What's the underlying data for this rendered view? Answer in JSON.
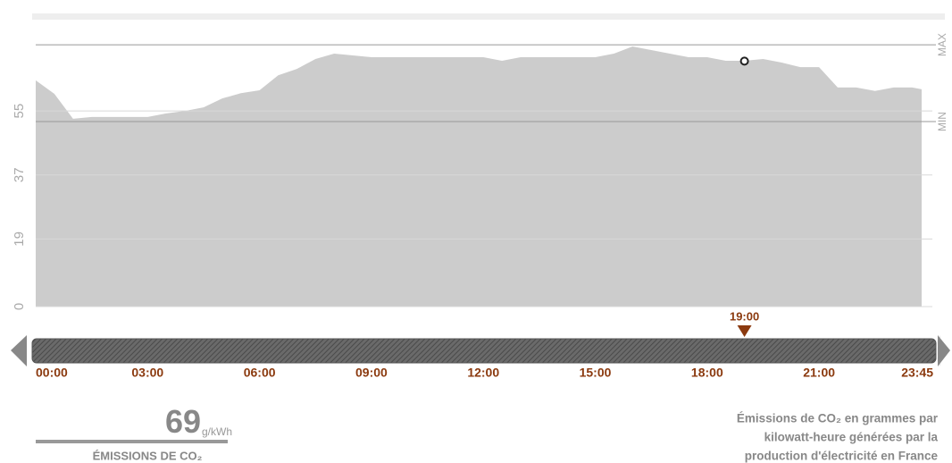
{
  "chart_data": {
    "type": "area",
    "x": [
      0,
      0.5,
      1,
      1.5,
      2,
      3,
      3.5,
      4,
      4.5,
      5,
      5.5,
      6,
      6.5,
      7,
      7.5,
      8,
      8.5,
      9,
      12,
      12.5,
      13,
      15,
      15.5,
      16,
      16.5,
      17,
      17.5,
      18,
      18.5,
      19,
      19.5,
      20,
      20.5,
      21,
      21.5,
      22,
      22.5,
      23,
      23.5,
      23.75
    ],
    "values": [
      63.6,
      59.8,
      52.8,
      53.3,
      53.3,
      53.3,
      54.3,
      55,
      56,
      58.5,
      60,
      60.8,
      65,
      66.8,
      69.6,
      71.1,
      70.6,
      70.1,
      70.1,
      69.1,
      70.1,
      70.1,
      71.1,
      73.1,
      72.1,
      71.1,
      70.1,
      70.1,
      69.1,
      69.1,
      69.6,
      68.6,
      67.3,
      67.3,
      61.6,
      61.6,
      60.6,
      61.6,
      61.6,
      61.1
    ],
    "color": "#cccccc",
    "xlim": [
      0,
      23.75
    ],
    "xticks": [
      {
        "value": 0,
        "label": "00:00"
      },
      {
        "value": 3,
        "label": "03:00"
      },
      {
        "value": 6,
        "label": "06:00"
      },
      {
        "value": 9,
        "label": "09:00"
      },
      {
        "value": 12,
        "label": "12:00"
      },
      {
        "value": 15,
        "label": "15:00"
      },
      {
        "value": 18,
        "label": "18:00"
      },
      {
        "value": 21,
        "label": "21:00"
      },
      {
        "value": 23.75,
        "label": "23:45"
      }
    ],
    "ylim": [
      0,
      80
    ],
    "yticks": [
      0,
      19,
      37,
      55
    ],
    "grid": true,
    "reference_lines": [
      {
        "label": "MAX",
        "value": 73.6
      },
      {
        "label": "MIN",
        "value": 52
      }
    ],
    "current": {
      "x": 19,
      "x_label": "19:00",
      "value": 69,
      "unit": "g/kWh",
      "label": "ÉMISSIONS DE CO₂"
    },
    "caption_lines": [
      "Émissions de CO₂ en grammes par",
      "kilowatt-heure générées par la",
      "production d'électricité en France"
    ]
  }
}
